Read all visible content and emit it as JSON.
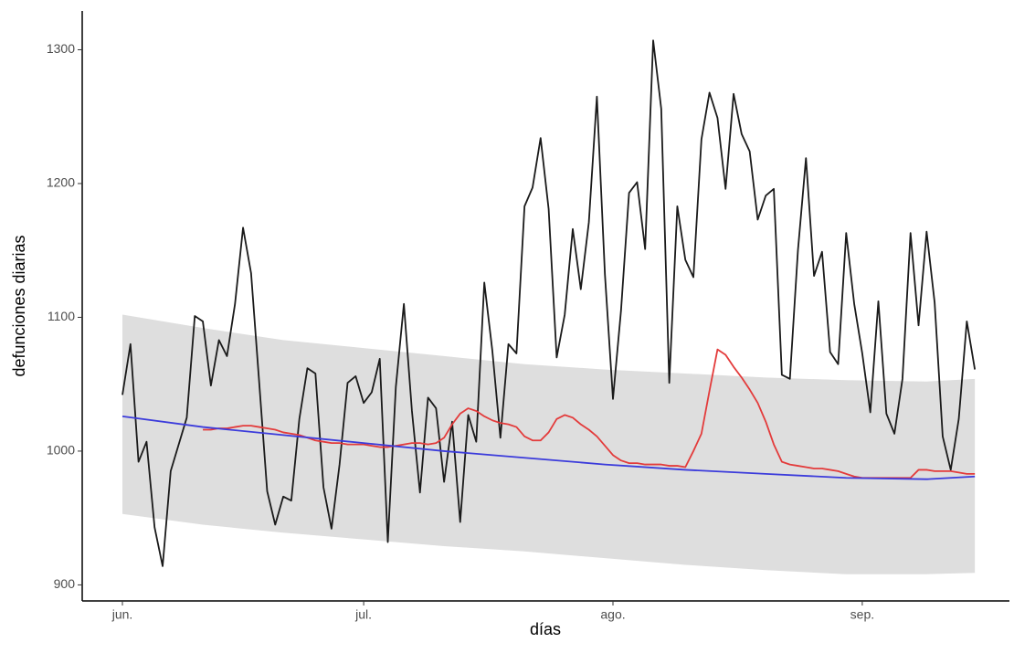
{
  "chart_data": {
    "type": "line",
    "xlabel": "días",
    "ylabel": "defunciones diarias",
    "xlim": [
      -5,
      110.3
    ],
    "ylim": [
      888,
      1329
    ],
    "xticks": [
      {
        "value": 0,
        "label": "jun."
      },
      {
        "value": 30,
        "label": "jul."
      },
      {
        "value": 61,
        "label": "ago."
      },
      {
        "value": 92,
        "label": "sep."
      }
    ],
    "yticks": [
      900,
      1000,
      1100,
      1200,
      1300
    ],
    "band": {
      "color": "#dedede",
      "x": [
        0,
        10,
        20,
        30,
        40,
        50,
        60,
        70,
        80,
        90,
        100,
        106
      ],
      "upper": [
        1102,
        1092,
        1083,
        1077,
        1071,
        1065,
        1061,
        1058,
        1055,
        1053,
        1052,
        1054
      ],
      "lower": [
        953,
        945,
        939,
        934,
        929,
        925,
        920,
        915,
        911,
        908,
        908,
        909
      ]
    },
    "x": [
      0,
      1,
      2,
      3,
      4,
      5,
      6,
      7,
      8,
      9,
      10,
      11,
      12,
      13,
      14,
      15,
      16,
      17,
      18,
      19,
      20,
      21,
      22,
      23,
      24,
      25,
      26,
      27,
      28,
      29,
      30,
      31,
      32,
      33,
      34,
      35,
      36,
      37,
      38,
      39,
      40,
      41,
      42,
      43,
      44,
      45,
      46,
      47,
      48,
      49,
      50,
      51,
      52,
      53,
      54,
      55,
      56,
      57,
      58,
      59,
      60,
      61,
      62,
      63,
      64,
      65,
      66,
      67,
      68,
      69,
      70,
      71,
      72,
      73,
      74,
      75,
      76,
      77,
      78,
      79,
      80,
      81,
      82,
      83,
      84,
      85,
      86,
      87,
      88,
      89,
      90,
      91,
      92,
      93,
      94,
      95,
      96,
      97,
      98,
      99,
      100,
      101,
      102,
      103,
      104,
      105,
      106
    ],
    "series": [
      {
        "color": "#1a1a1a",
        "values": [
          1042,
          1080,
          992,
          1007,
          943,
          914,
          985,
          1005,
          1025,
          1101,
          1097,
          1049,
          1083,
          1071,
          1110,
          1167,
          1133,
          1052,
          970,
          945,
          966,
          963,
          1024,
          1062,
          1058,
          973,
          942,
          990,
          1051,
          1056,
          1036,
          1044,
          1069,
          932,
          1048,
          1110,
          1030,
          969,
          1040,
          1032,
          977,
          1022,
          947,
          1027,
          1007,
          1126,
          1075,
          1010,
          1080,
          1073,
          1183,
          1197,
          1234,
          1181,
          1070,
          1102,
          1166,
          1121,
          1171,
          1265,
          1132,
          1039,
          1105,
          1193,
          1201,
          1151,
          1307,
          1256,
          1051,
          1183,
          1143,
          1130,
          1233,
          1268,
          1249,
          1196,
          1267,
          1237,
          1224,
          1173,
          1191,
          1196,
          1057,
          1054,
          1150,
          1219,
          1131,
          1149,
          1074,
          1065,
          1163,
          1110,
          1073,
          1029,
          1112,
          1028,
          1013,
          1054,
          1163,
          1094,
          1164,
          1111,
          1011,
          986,
          1024,
          1097,
          1061
        ]
      },
      {
        "color": "#e33b3b",
        "values": [
          null,
          null,
          null,
          null,
          null,
          null,
          null,
          null,
          null,
          null,
          1016,
          1016,
          1017,
          1017,
          1018,
          1019,
          1019,
          1018,
          1017,
          1016,
          1014,
          1013,
          1012,
          1010,
          1008,
          1007,
          1006,
          1006,
          1005,
          1005,
          1005,
          1004,
          1003,
          1003,
          1004,
          1005,
          1006,
          1006,
          1005,
          1006,
          1010,
          1020,
          1028,
          1032,
          1030,
          1026,
          1023,
          1021,
          1020,
          1018,
          1011,
          1008,
          1008,
          1014,
          1024,
          1027,
          1025,
          1020,
          1016,
          1011,
          1004,
          997,
          993,
          991,
          991,
          990,
          990,
          990,
          989,
          989,
          988,
          1000,
          1013,
          1045,
          1076,
          1072,
          1063,
          1055,
          1046,
          1036,
          1022,
          1005,
          992,
          990,
          989,
          988,
          987,
          987,
          986,
          985,
          983,
          981,
          980,
          980,
          980,
          980,
          980,
          980,
          980,
          986,
          986,
          985,
          985,
          985,
          984,
          983,
          983
        ]
      },
      {
        "color": "#3b3bdb",
        "x": [
          0,
          10,
          20,
          30,
          40,
          50,
          60,
          70,
          80,
          90,
          100,
          106
        ],
        "values": [
          1026,
          1018,
          1012,
          1006,
          1000,
          995,
          990,
          986,
          983,
          980,
          979,
          981
        ]
      }
    ]
  }
}
